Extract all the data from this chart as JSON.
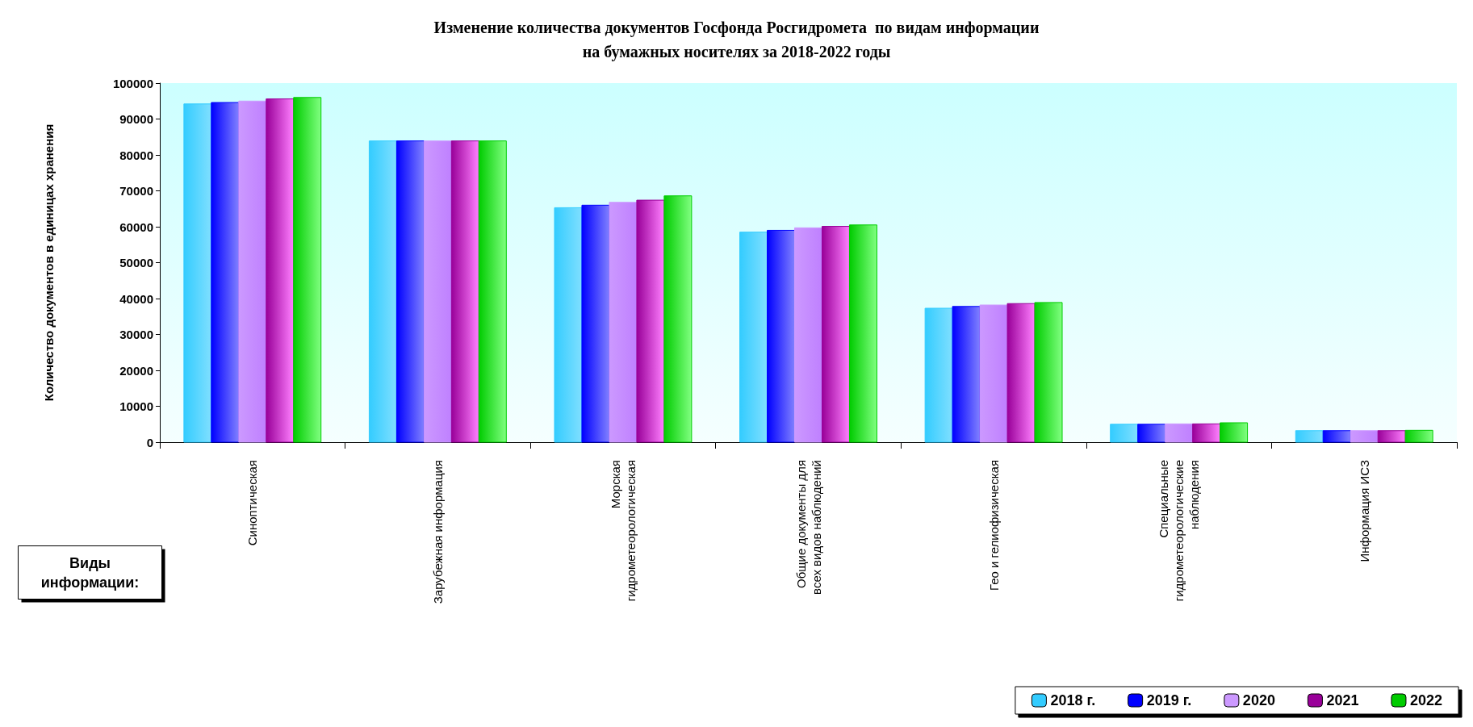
{
  "chart_data": {
    "type": "bar",
    "title": "Изменение количества документов Госфонда Росгидромета  по видам информации\nна бумажных носителях за 2018-2022 годы",
    "ylabel": "Количество документов в единицах хранения",
    "xlabel": "Виды\nинформации:",
    "categories": [
      "Синоптическая",
      "Зарубежная информация",
      "Морская\nгидрометеорологическая",
      "Общие документы для\nвсех видов наблюдений",
      "Гео и гелиофизическая",
      "Специальные\nгидрометеорологические\nнаблюдения",
      "Информация ИСЗ"
    ],
    "series": [
      {
        "name": "2018 г.",
        "color": "#33ccff",
        "values": [
          94200,
          83900,
          65300,
          58500,
          37300,
          5000,
          3200
        ]
      },
      {
        "name": "2019 г.",
        "color": "#0000ff",
        "values": [
          94600,
          83900,
          66000,
          59000,
          37800,
          5000,
          3200
        ]
      },
      {
        "name": "2020",
        "color": "#cc99ff",
        "values": [
          95000,
          83900,
          66800,
          59700,
          38200,
          5100,
          3200
        ]
      },
      {
        "name": "2021",
        "color": "#990099",
        "values": [
          95600,
          83900,
          67400,
          60100,
          38600,
          5100,
          3200
        ]
      },
      {
        "name": "2022",
        "color": "#00cc00",
        "values": [
          96000,
          83900,
          68600,
          60500,
          38900,
          5400,
          3300
        ]
      }
    ],
    "ylim": [
      0,
      100000
    ],
    "yticks": [
      0,
      10000,
      20000,
      30000,
      40000,
      50000,
      60000,
      70000,
      80000,
      90000,
      100000
    ],
    "grid": false,
    "legend": "bottom right"
  }
}
